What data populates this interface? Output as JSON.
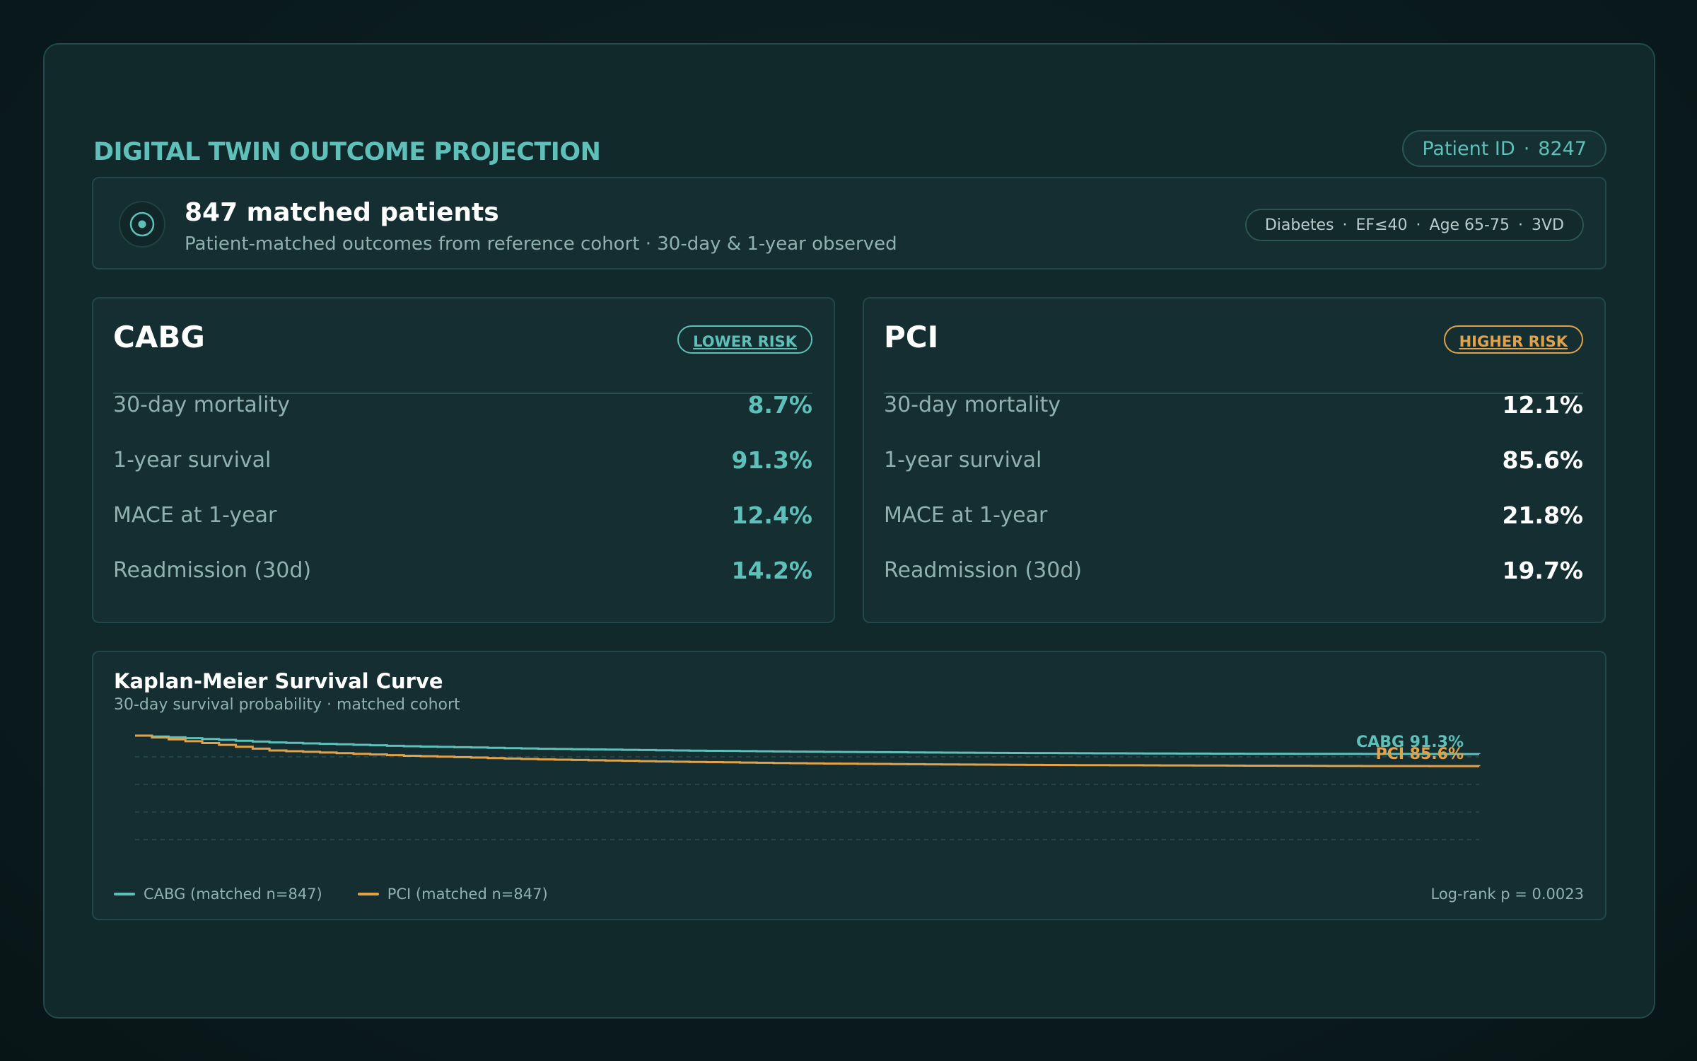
{
  "header": {
    "title": "DIGITAL TWIN OUTCOME PROJECTION",
    "patient_id_label": "Patient ID",
    "patient_id_sep": "·",
    "patient_id": "8247"
  },
  "cohort": {
    "icon": "target-icon",
    "title": "847 matched patients",
    "subtitle": "Patient-matched outcomes from reference cohort  ·  30-day & 1-year observed",
    "tags": [
      "Diabetes",
      "EF≤40",
      "Age 65-75",
      "3VD"
    ],
    "tag_sep": "·"
  },
  "cards": [
    {
      "title": "CABG",
      "risk": "LOWER RISK",
      "metrics": [
        {
          "label": "30-day mortality",
          "value": "8.7%"
        },
        {
          "label": "1-year survival",
          "value": "91.3%"
        },
        {
          "label": "MACE at 1-year",
          "value": "12.4%"
        },
        {
          "label": "Readmission (30d)",
          "value": "14.2%"
        }
      ]
    },
    {
      "title": "PCI",
      "risk": "HIGHER RISK",
      "metrics": [
        {
          "label": "30-day mortality",
          "value": "12.1%"
        },
        {
          "label": "1-year survival",
          "value": "85.6%"
        },
        {
          "label": "MACE at 1-year",
          "value": "21.8%"
        },
        {
          "label": "Readmission (30d)",
          "value": "19.7%"
        }
      ]
    }
  ],
  "colors": {
    "cabg": "#5fbfb9",
    "pci": "#e2a24a"
  },
  "chart": {
    "title": "Kaplan-Meier Survival Curve",
    "subtitle": "30-day survival probability  ·  matched cohort",
    "log_rank": "Log-rank p = 0.0023"
  },
  "chart_data": {
    "type": "line",
    "title": "Kaplan-Meier Survival Curve",
    "subtitle": "30-day survival probability  ·  matched cohort",
    "x": [
      0,
      0.1,
      0.2,
      0.3,
      0.4,
      0.5,
      0.6,
      0.7,
      0.8,
      0.9,
      1.0
    ],
    "ylim": [
      0.5,
      1.0
    ],
    "grid": true,
    "series": [
      {
        "name": "CABG (matched n=847)",
        "end_label": "CABG 91.3%",
        "values": [
          1.0,
          0.968,
          0.95,
          0.938,
          0.93,
          0.924,
          0.92,
          0.917,
          0.915,
          0.914,
          0.913
        ]
      },
      {
        "name": "PCI (matched n=847)",
        "end_label": "PCI 85.6%",
        "values": [
          1.0,
          0.93,
          0.905,
          0.888,
          0.877,
          0.869,
          0.864,
          0.861,
          0.859,
          0.857,
          0.856
        ]
      }
    ],
    "legend_position": "bottom-left"
  }
}
